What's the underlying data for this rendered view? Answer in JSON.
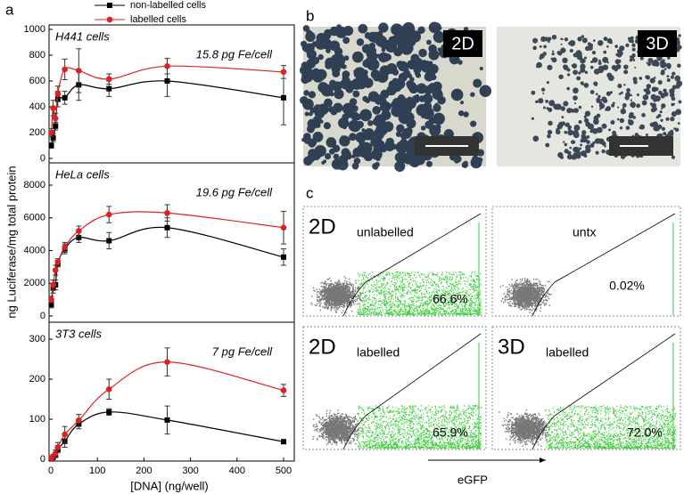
{
  "chart_data": [
    {
      "type": "line",
      "title": "H441 cells",
      "annotation": "15.8 pg Fe/cell",
      "x": [
        1,
        5,
        10,
        15,
        30,
        60,
        125,
        250,
        500
      ],
      "xlim": [
        0,
        500
      ],
      "ylim": [
        0,
        1000
      ],
      "yticks": [
        0,
        200,
        400,
        600,
        800,
        1000
      ],
      "series": [
        {
          "name": "non-labelled cells",
          "color": "#000000",
          "marker": "square",
          "values": [
            100,
            160,
            250,
            460,
            470,
            570,
            540,
            600,
            470
          ],
          "errors": [
            20,
            30,
            30,
            60,
            50,
            120,
            60,
            120,
            210
          ]
        },
        {
          "name": "labelled cells",
          "color": "#e02020",
          "marker": "circle",
          "values": [
            200,
            390,
            310,
            500,
            690,
            680,
            615,
            715,
            670
          ],
          "errors": [
            30,
            60,
            40,
            60,
            80,
            170,
            40,
            60,
            50
          ]
        }
      ]
    },
    {
      "type": "line",
      "title": "HeLa cells",
      "annotation": "19.6 pg Fe/cell",
      "ylabel": "ng Luciferase/mg total protein",
      "x": [
        1,
        5,
        10,
        15,
        30,
        60,
        125,
        250,
        500
      ],
      "xlim": [
        0,
        500
      ],
      "ylim": [
        0,
        8000
      ],
      "yticks": [
        0,
        2000,
        4000,
        6000,
        8000
      ],
      "series": [
        {
          "color": "#000000",
          "marker": "square",
          "values": [
            700,
            1700,
            1900,
            3200,
            4100,
            4800,
            4600,
            5400,
            3600
          ],
          "errors": [
            200,
            300,
            300,
            200,
            300,
            300,
            500,
            600,
            500
          ]
        },
        {
          "color": "#e02020",
          "marker": "circle",
          "values": [
            1000,
            1900,
            2800,
            3300,
            4200,
            5200,
            6200,
            6300,
            5400
          ],
          "errors": [
            200,
            300,
            300,
            200,
            300,
            300,
            500,
            500,
            1000
          ]
        }
      ]
    },
    {
      "type": "line",
      "title": "3T3 cells",
      "annotation": "7 pg Fe/cell",
      "xlabel": "[DNA] (ng/well)",
      "x": [
        1,
        5,
        10,
        15,
        30,
        60,
        125,
        250,
        500
      ],
      "xlim": [
        0,
        500
      ],
      "xticks": [
        0,
        100,
        200,
        300,
        400,
        500
      ],
      "ylim": [
        0,
        300
      ],
      "yticks": [
        0,
        100,
        200,
        300
      ],
      "series": [
        {
          "color": "#000000",
          "marker": "square",
          "values": [
            2,
            5,
            10,
            25,
            45,
            88,
            118,
            98,
            44
          ],
          "errors": [
            2,
            3,
            5,
            8,
            15,
            12,
            8,
            35,
            4
          ]
        },
        {
          "color": "#e02020",
          "marker": "circle",
          "values": [
            3,
            8,
            15,
            30,
            62,
            97,
            175,
            243,
            172
          ],
          "errors": [
            3,
            4,
            8,
            12,
            20,
            15,
            25,
            35,
            15
          ]
        }
      ]
    }
  ],
  "panels": {
    "a": "a",
    "b": {
      "label": "b",
      "images": [
        "2D",
        "3D"
      ]
    },
    "c": {
      "label": "c",
      "axis": "eGFP",
      "plots": [
        {
          "condition": "2D",
          "sample": "unlabelled",
          "percent": "66.6%"
        },
        {
          "sample": "untx",
          "percent": "0.02%"
        },
        {
          "condition": "2D",
          "sample": "labelled",
          "percent": "65.9%"
        },
        {
          "condition": "3D",
          "sample": "labelled",
          "percent": "72.0%"
        }
      ]
    }
  }
}
